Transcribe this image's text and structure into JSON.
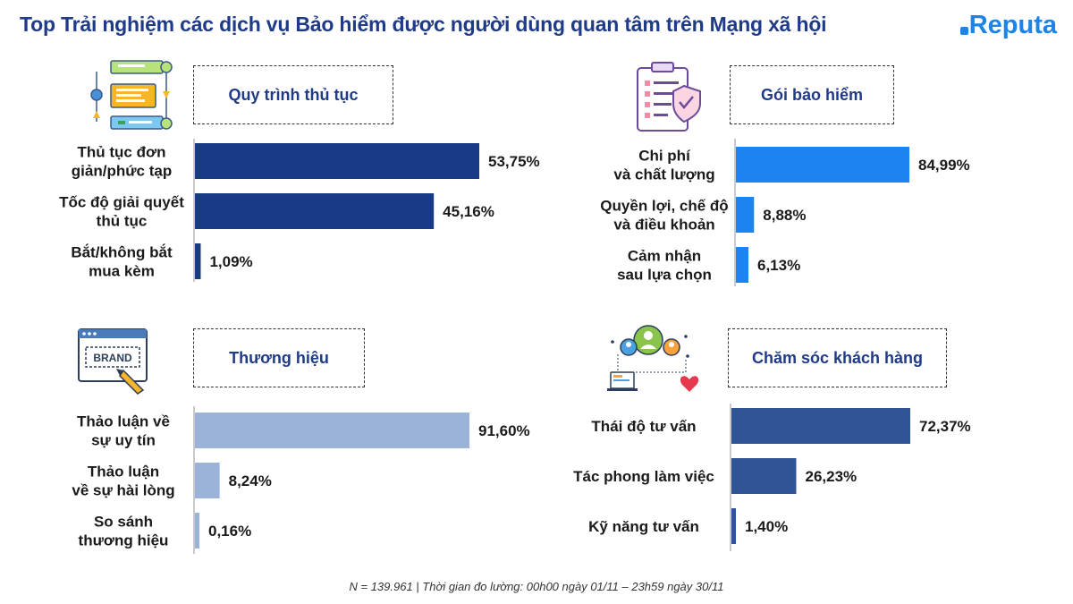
{
  "header": {
    "title": "Top Trải nghiệm các dịch vụ Bảo hiểm được người dùng quan tâm trên Mạng xã hội",
    "brand": "Reputa"
  },
  "footer": {
    "note": "N = 139.961 | Thời gian đo lường: 00h00 ngày 01/11 – 23h59 ngày 30/11"
  },
  "icons": {
    "brand_icon_text": "BRAND"
  },
  "chart_data": [
    {
      "type": "bar",
      "orientation": "horizontal",
      "title": "Quy trình thủ tục",
      "color": "#173b86",
      "categories": [
        [
          "Thủ tục đơn",
          "giản/phức tạp"
        ],
        [
          "Tốc độ giải quyết",
          "thủ tục"
        ],
        [
          "Bắt/không bắt",
          "mua kèm"
        ]
      ],
      "values": [
        53.75,
        45.16,
        1.09
      ],
      "labels": [
        "53,75%",
        "45,16%",
        "1,09%"
      ],
      "xlim": [
        0,
        100
      ]
    },
    {
      "type": "bar",
      "orientation": "horizontal",
      "title": "Gói bảo hiểm",
      "color": "#1b84f0",
      "categories": [
        [
          "Chi phí",
          "và chất lượng"
        ],
        [
          "Quyền lợi, chế độ",
          "và điều khoản"
        ],
        [
          "Cảm nhận",
          "sau lựa chọn"
        ]
      ],
      "values": [
        84.99,
        8.88,
        6.13
      ],
      "labels": [
        "84,99%",
        "8,88%",
        "6,13%"
      ],
      "xlim": [
        0,
        100
      ]
    },
    {
      "type": "bar",
      "orientation": "horizontal",
      "title": "Thương hiệu",
      "color": "#9bb3d9",
      "categories": [
        [
          "Thảo luận về",
          "sự uy tín"
        ],
        [
          "Thảo luận",
          "về sự hài lòng"
        ],
        [
          "So sánh",
          "thương hiệu"
        ]
      ],
      "values": [
        91.6,
        8.24,
        0.16
      ],
      "labels": [
        "91,60%",
        "8,24%",
        "0,16%"
      ],
      "xlim": [
        0,
        100
      ]
    },
    {
      "type": "bar",
      "orientation": "horizontal",
      "title": "Chăm sóc khách hàng",
      "color": "#2f5597",
      "categories": [
        [
          "Thái độ tư vấn"
        ],
        [
          "Tác phong làm việc"
        ],
        [
          "Kỹ năng tư vấn"
        ]
      ],
      "values": [
        72.37,
        26.23,
        1.4
      ],
      "labels": [
        "72,37%",
        "26,23%",
        "1,40%"
      ],
      "xlim": [
        0,
        100
      ]
    }
  ]
}
